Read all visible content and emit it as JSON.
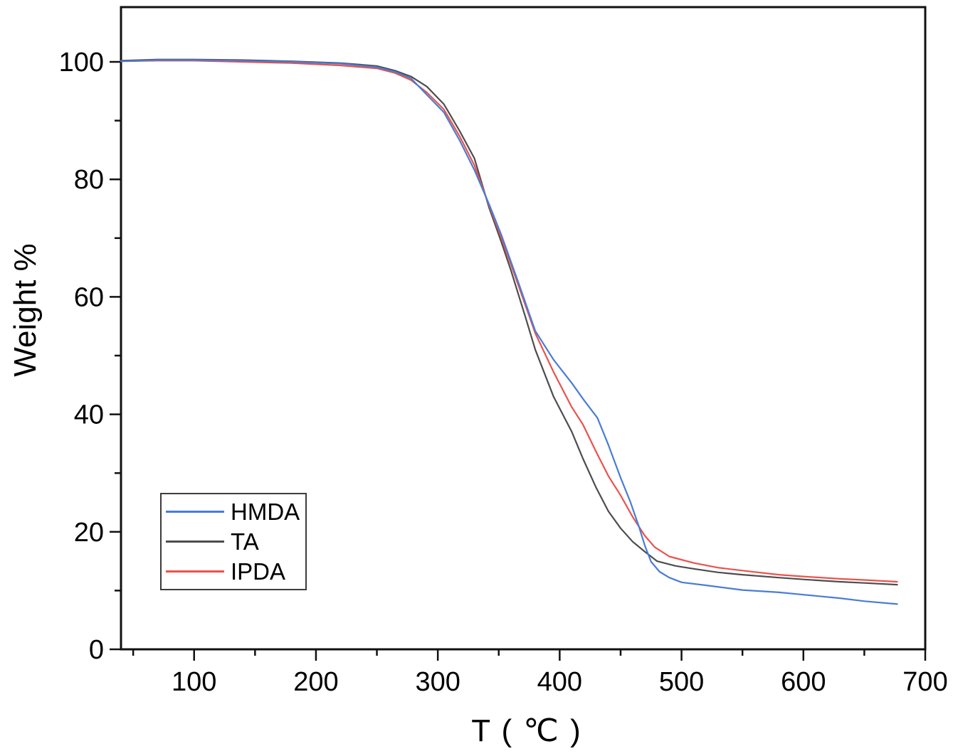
{
  "figure": {
    "background": "#ffffff",
    "frame_color": "#111111",
    "tick_color": "#111111",
    "text_color": "#000000"
  },
  "chart_data": {
    "type": "line",
    "title": "",
    "xlabel": "T ( ℃ )",
    "ylabel": "Weight %",
    "xlim": [
      40,
      700
    ],
    "ylim": [
      0,
      109.3
    ],
    "x_ticks_major": [
      100,
      200,
      300,
      400,
      500,
      600,
      700
    ],
    "x_ticks_minor": [
      50,
      150,
      250,
      350,
      450,
      550,
      650
    ],
    "y_ticks_major": [
      0,
      20,
      40,
      60,
      80,
      100
    ],
    "y_ticks_minor": [
      10,
      30,
      50,
      70,
      90
    ],
    "grid": false,
    "legend_position": "lower-left",
    "series": [
      {
        "name": "HMDA",
        "color": "#4a7cd6",
        "points": [
          [
            40,
            100.1
          ],
          [
            70,
            100.3
          ],
          [
            100,
            100.3
          ],
          [
            140,
            100.2
          ],
          [
            180,
            100.0
          ],
          [
            220,
            99.7
          ],
          [
            250,
            99.1
          ],
          [
            265,
            98.3
          ],
          [
            278,
            97.2
          ],
          [
            291,
            94.4
          ],
          [
            305,
            91.4
          ],
          [
            318,
            86.6
          ],
          [
            330,
            81.6
          ],
          [
            342,
            75.8
          ],
          [
            352,
            70.6
          ],
          [
            366,
            62.5
          ],
          [
            380,
            54.2
          ],
          [
            395,
            49.3
          ],
          [
            410,
            45.3
          ],
          [
            420,
            42.4
          ],
          [
            431,
            39.4
          ],
          [
            440,
            34.8
          ],
          [
            450,
            29.2
          ],
          [
            458,
            25.1
          ],
          [
            465,
            20.9
          ],
          [
            470,
            17.6
          ],
          [
            475,
            14.9
          ],
          [
            482,
            13.2
          ],
          [
            490,
            12.2
          ],
          [
            500,
            11.4
          ],
          [
            520,
            10.9
          ],
          [
            550,
            10.1
          ],
          [
            580,
            9.7
          ],
          [
            600,
            9.3
          ],
          [
            630,
            8.7
          ],
          [
            650,
            8.2
          ],
          [
            677,
            7.7
          ]
        ]
      },
      {
        "name": "TA",
        "color": "#4d4d4d",
        "points": [
          [
            40,
            100.2
          ],
          [
            70,
            100.4
          ],
          [
            100,
            100.4
          ],
          [
            140,
            100.3
          ],
          [
            180,
            100.1
          ],
          [
            220,
            99.8
          ],
          [
            250,
            99.3
          ],
          [
            265,
            98.5
          ],
          [
            278,
            97.5
          ],
          [
            291,
            95.8
          ],
          [
            305,
            92.8
          ],
          [
            318,
            88.2
          ],
          [
            330,
            83.6
          ],
          [
            342,
            75.2
          ],
          [
            352,
            69.4
          ],
          [
            360,
            64.5
          ],
          [
            372,
            56.5
          ],
          [
            380,
            51.0
          ],
          [
            395,
            43.0
          ],
          [
            410,
            37.0
          ],
          [
            419,
            32.5
          ],
          [
            430,
            27.5
          ],
          [
            440,
            23.5
          ],
          [
            450,
            20.6
          ],
          [
            460,
            18.3
          ],
          [
            470,
            16.6
          ],
          [
            480,
            15.0
          ],
          [
            495,
            14.2
          ],
          [
            510,
            13.7
          ],
          [
            530,
            13.1
          ],
          [
            550,
            12.7
          ],
          [
            580,
            12.2
          ],
          [
            600,
            11.9
          ],
          [
            630,
            11.5
          ],
          [
            650,
            11.3
          ],
          [
            677,
            11.0
          ]
        ]
      },
      {
        "name": "IPDA",
        "color": "#ea524d",
        "points": [
          [
            40,
            100.1
          ],
          [
            70,
            100.2
          ],
          [
            100,
            100.2
          ],
          [
            140,
            100.0
          ],
          [
            180,
            99.8
          ],
          [
            220,
            99.4
          ],
          [
            250,
            98.9
          ],
          [
            265,
            98.1
          ],
          [
            278,
            96.9
          ],
          [
            291,
            94.8
          ],
          [
            305,
            91.9
          ],
          [
            318,
            87.3
          ],
          [
            330,
            82.4
          ],
          [
            342,
            75.6
          ],
          [
            352,
            70.1
          ],
          [
            366,
            62.0
          ],
          [
            380,
            53.8
          ],
          [
            395,
            47.2
          ],
          [
            410,
            41.2
          ],
          [
            419,
            38.3
          ],
          [
            430,
            33.6
          ],
          [
            440,
            29.5
          ],
          [
            450,
            26.2
          ],
          [
            460,
            22.5
          ],
          [
            470,
            19.3
          ],
          [
            478,
            17.4
          ],
          [
            490,
            15.8
          ],
          [
            510,
            14.7
          ],
          [
            530,
            13.9
          ],
          [
            550,
            13.4
          ],
          [
            580,
            12.7
          ],
          [
            600,
            12.4
          ],
          [
            630,
            12.0
          ],
          [
            650,
            11.8
          ],
          [
            677,
            11.5
          ]
        ]
      }
    ]
  }
}
